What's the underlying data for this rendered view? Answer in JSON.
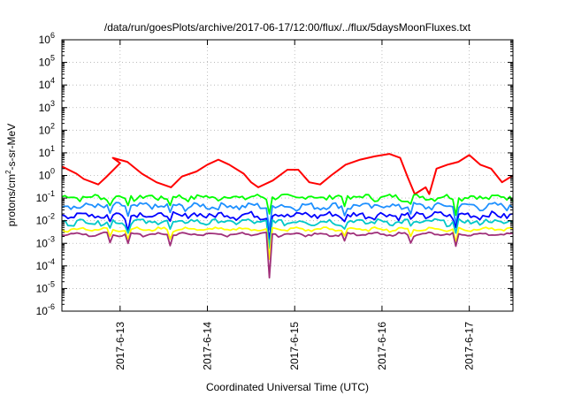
{
  "chart_data": {
    "type": "line",
    "title": "/data/run/goesPlots/archive/2017-06-17/12:00/flux/../flux/5daysMoonFluxes.txt",
    "xlabel": "Coordinated Universal Time (UTC)",
    "ylabel_parts": {
      "base": "protons/cm",
      "sup": "2",
      "rest": "-s-sr-MeV"
    },
    "y_scale": "log",
    "ylim": [
      1e-06,
      1000000.0
    ],
    "y_tick_exponents": [
      -6,
      -5,
      -4,
      -3,
      -2,
      -1,
      0,
      1,
      2,
      3,
      4,
      5,
      6
    ],
    "y_tick_base": "10",
    "x_domain": [
      "2017-06-12T08:00",
      "2017-06-17T12:00"
    ],
    "x_ticks": [
      {
        "x": "2017-06-13T00:00",
        "label": "2017-6-13"
      },
      {
        "x": "2017-06-14T00:00",
        "label": "2017-6-14"
      },
      {
        "x": "2017-06-15T00:00",
        "label": "2017-6-15"
      },
      {
        "x": "2017-06-16T00:00",
        "label": "2017-6-16"
      },
      {
        "x": "2017-06-17T00:00",
        "label": "2017-6-17"
      }
    ],
    "grid": true,
    "series": [
      {
        "color": "#ff0000",
        "key": "red",
        "points": [
          [
            "2017-06-12T08:00",
            2.5
          ],
          [
            "2017-06-12T12:00",
            1.2
          ],
          [
            "2017-06-12T14:00",
            0.7
          ],
          [
            "2017-06-12T18:00",
            0.4
          ],
          [
            "2017-06-12T20:00",
            0.8
          ],
          [
            "2017-06-13T00:00",
            3.5
          ],
          [
            "2017-06-12T22:00",
            6
          ],
          [
            "2017-06-13T02:00",
            4
          ],
          [
            "2017-06-13T06:00",
            1.2
          ],
          [
            "2017-06-13T10:00",
            0.5
          ],
          [
            "2017-06-13T14:00",
            0.3
          ],
          [
            "2017-06-13T17:00",
            0.9
          ],
          [
            "2017-06-13T21:00",
            1.5
          ],
          [
            "2017-06-14T00:00",
            3
          ],
          [
            "2017-06-14T03:00",
            5
          ],
          [
            "2017-06-14T06:00",
            3
          ],
          [
            "2017-06-14T10:00",
            1.2
          ],
          [
            "2017-06-14T12:00",
            0.5
          ],
          [
            "2017-06-14T14:00",
            0.3
          ],
          [
            "2017-06-14T18:00",
            0.6
          ],
          [
            "2017-06-14T22:00",
            1.8
          ],
          [
            "2017-06-15T01:00",
            1.8
          ],
          [
            "2017-06-15T04:00",
            0.5
          ],
          [
            "2017-06-15T07:00",
            0.4
          ],
          [
            "2017-06-15T10:00",
            1.0
          ],
          [
            "2017-06-15T14:00",
            3
          ],
          [
            "2017-06-15T18:00",
            5
          ],
          [
            "2017-06-15T22:00",
            7
          ],
          [
            "2017-06-16T02:00",
            9
          ],
          [
            "2017-06-16T05:00",
            6
          ],
          [
            "2017-06-16T07:00",
            0.9
          ],
          [
            "2017-06-16T09:00",
            0.15
          ],
          [
            "2017-06-16T12:00",
            0.3
          ],
          [
            "2017-06-16T13:00",
            0.15
          ],
          [
            "2017-06-16T15:00",
            2
          ],
          [
            "2017-06-16T18:00",
            3
          ],
          [
            "2017-06-16T21:00",
            4
          ],
          [
            "2017-06-17T00:00",
            8
          ],
          [
            "2017-06-17T03:00",
            3
          ],
          [
            "2017-06-17T06:00",
            2
          ],
          [
            "2017-06-17T09:00",
            0.5
          ],
          [
            "2017-06-17T12:00",
            1
          ]
        ]
      },
      {
        "color": "#00ff00",
        "key": "green",
        "base": 0.11,
        "jitter": 0.25,
        "dip": 0.02,
        "phase": 0.3
      },
      {
        "color": "#1e90ff",
        "key": "blue-light",
        "base": 0.045,
        "jitter": 0.3,
        "dip": 0.004,
        "phase": 1.1
      },
      {
        "color": "#0000ff",
        "key": "blue",
        "base": 0.018,
        "jitter": 0.3,
        "dip": 0.0015,
        "phase": 2.0
      },
      {
        "color": "#00c8c8",
        "key": "cyan",
        "base": 0.009,
        "jitter": 0.25,
        "dip": 0.0006,
        "phase": 2.7
      },
      {
        "color": "#ffff00",
        "key": "yellow",
        "base": 0.0042,
        "jitter": 0.12,
        "dip": 0.0002,
        "phase": 3.5
      },
      {
        "color": "#a0307a",
        "key": "purple",
        "base": 0.0025,
        "jitter": 0.1,
        "dip": 3e-05,
        "phase": 4.2
      }
    ],
    "dips": [
      {
        "x": "2017-06-12T21:00",
        "factor": 0.45
      },
      {
        "x": "2017-06-13T02:00",
        "factor": 0.35
      },
      {
        "x": "2017-06-13T14:00",
        "factor": 0.4
      },
      {
        "x": "2017-06-14T17:00",
        "deep": true
      },
      {
        "x": "2017-06-15T14:00",
        "factor": 0.5
      },
      {
        "x": "2017-06-16T08:00",
        "factor": 0.5
      },
      {
        "x": "2017-06-16T20:00",
        "factor": 0.25
      }
    ]
  }
}
